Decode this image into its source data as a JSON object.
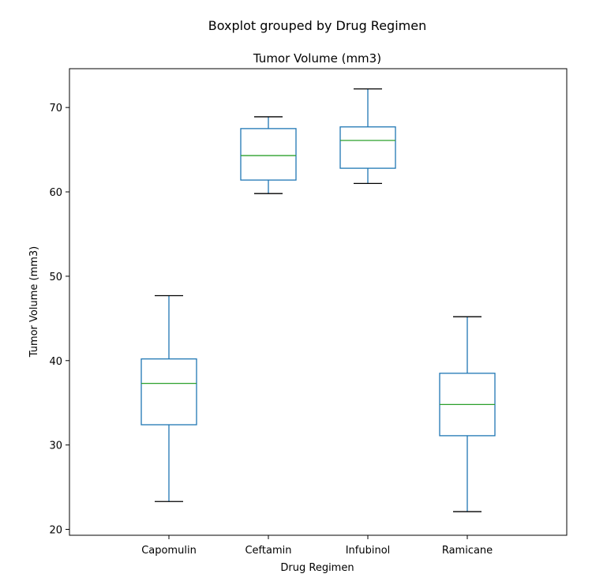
{
  "chart_data": {
    "type": "box",
    "suptitle": "Boxplot grouped by Drug Regimen",
    "title": "Tumor Volume (mm3)",
    "xlabel": "Drug Regimen",
    "ylabel": "Tumor Volume (mm3)",
    "ylim": [
      19.3,
      74.6
    ],
    "yticks": [
      20,
      30,
      40,
      50,
      60,
      70
    ],
    "categories": [
      "Capomulin",
      "Ceftamin",
      "Infubinol",
      "Ramicane"
    ],
    "boxes": [
      {
        "name": "Capomulin",
        "whisker_low": 23.3,
        "q1": 32.4,
        "median": 37.3,
        "q3": 40.2,
        "whisker_high": 47.7
      },
      {
        "name": "Ceftamin",
        "whisker_low": 59.8,
        "q1": 61.4,
        "median": 64.3,
        "q3": 67.5,
        "whisker_high": 68.9
      },
      {
        "name": "Infubinol",
        "whisker_low": 61.0,
        "q1": 62.8,
        "median": 66.1,
        "q3": 67.7,
        "whisker_high": 72.2
      },
      {
        "name": "Ramicane",
        "whisker_low": 22.1,
        "q1": 31.1,
        "median": 34.8,
        "q3": 38.5,
        "whisker_high": 45.2
      }
    ],
    "grid": false,
    "colors": {
      "box": "#1f77b4",
      "median": "#2ca02c",
      "caps": "#000000",
      "axes": "#000000"
    }
  }
}
